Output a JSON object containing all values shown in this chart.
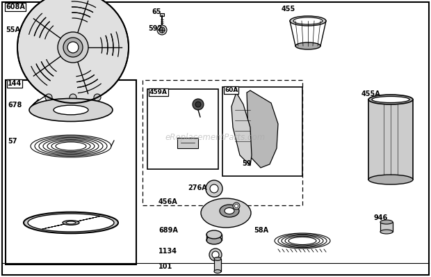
{
  "bg_color": "#ffffff",
  "watermark": "eReplacementParts.com",
  "border": [
    3,
    3,
    614,
    392
  ]
}
